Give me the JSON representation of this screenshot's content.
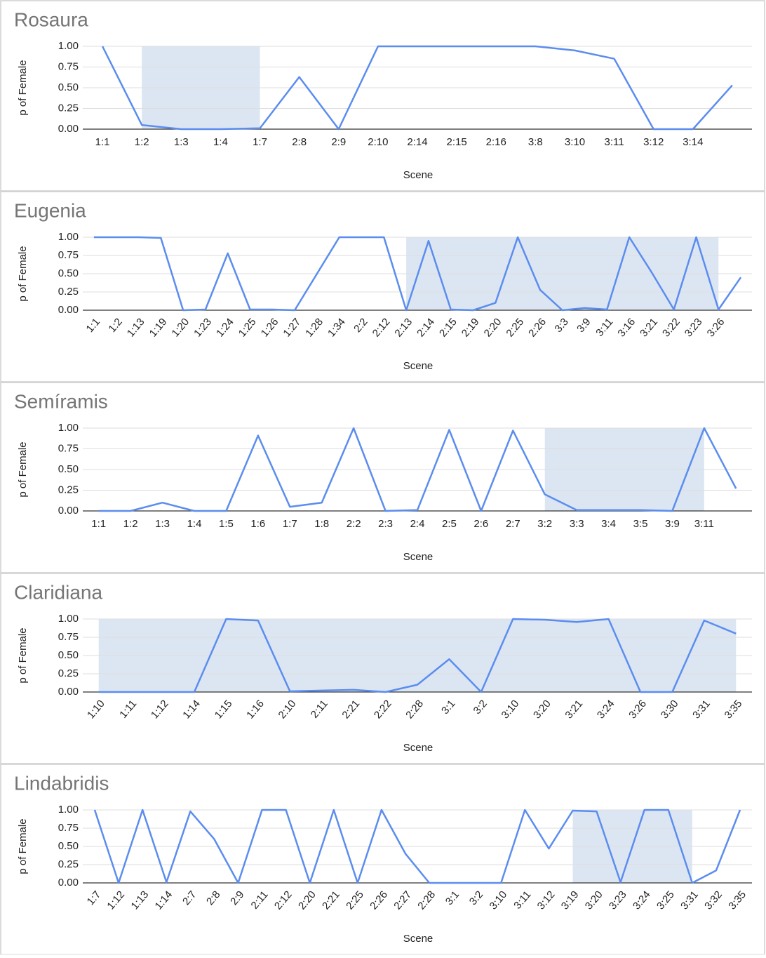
{
  "chart_data": [
    {
      "type": "line",
      "title": "Rosaura",
      "xlabel": "Scene",
      "ylabel": "p of Female",
      "color": "#5b8def",
      "shade_color": "#dce6f3",
      "categories": [
        "1:1",
        "1:2",
        "1:3",
        "1:4",
        "1:7",
        "2:8",
        "2:9",
        "2:10",
        "2:14",
        "2:15",
        "2:16",
        "3:8",
        "3:10",
        "3:11",
        "3:12",
        "3:14",
        null
      ],
      "values": [
        1.0,
        0.05,
        0.0,
        0.0,
        0.01,
        0.63,
        0.0,
        1.0,
        1.0,
        1.0,
        1.0,
        1.0,
        0.95,
        0.85,
        0.0,
        0.0,
        0.53
      ],
      "shade": [
        1,
        4
      ],
      "x_label_rotation": 0,
      "ylim": [
        0,
        1
      ],
      "yticks": [
        {
          "value": 0,
          "label": "0.00"
        },
        0.25,
        {
          "value": 0.5,
          "label": "0.50"
        },
        0.75,
        {
          "value": 1,
          "label": "1.00"
        }
      ],
      "grid": true
    },
    {
      "type": "line",
      "title": "Eugenia",
      "xlabel": "Scene",
      "ylabel": "p of Female",
      "color": "#5b8def",
      "shade_color": "#dce6f3",
      "categories": [
        "1:1",
        "1:2",
        "1:13",
        "1:19",
        "1:20",
        "1:23",
        "1:24",
        "1:25",
        "1:26",
        "1:27",
        "1:28",
        "1:34",
        "2:2",
        "2:12",
        "2:13",
        "2:14",
        "2:15",
        "2:19",
        "2:20",
        "2:25",
        "2:26",
        "3:3",
        "3:9",
        "3:11",
        "3:16",
        "3:21",
        "3:22",
        "3:23",
        "3:26",
        null
      ],
      "values": [
        1.0,
        1.0,
        1.0,
        0.99,
        0.0,
        0.01,
        0.78,
        0.01,
        0.01,
        0.0,
        0.5,
        1.0,
        1.0,
        1.0,
        0.0,
        0.95,
        0.01,
        0.0,
        0.1,
        1.0,
        0.28,
        0.0,
        0.03,
        0.01,
        1.0,
        0.52,
        0.01,
        1.0,
        0.01,
        0.45
      ],
      "shade": [
        14,
        28
      ],
      "x_label_rotation": -50,
      "ylim": [
        0,
        1
      ],
      "yticks": [
        {
          "value": 0,
          "label": "0.00"
        },
        0.25,
        {
          "value": 0.5,
          "label": "0.50"
        },
        0.75,
        {
          "value": 1,
          "label": "1.00"
        }
      ],
      "grid": true
    },
    {
      "type": "line",
      "title": "Semíramis",
      "xlabel": "Scene",
      "ylabel": "p of Female",
      "color": "#5b8def",
      "shade_color": "#dce6f3",
      "categories": [
        "1:1",
        "1:2",
        "1:3",
        "1:4",
        "1:5",
        "1:6",
        "1:7",
        "1:8",
        "2:2",
        "2:3",
        "2:4",
        "2:5",
        "2:6",
        "2:7",
        "3:2",
        "3:3",
        "3:4",
        "3:5",
        "3:9",
        "3:11",
        null
      ],
      "values": [
        0.0,
        0.0,
        0.1,
        0.0,
        0.0,
        0.91,
        0.05,
        0.1,
        1.0,
        0.0,
        0.01,
        0.98,
        0.0,
        0.97,
        0.2,
        0.01,
        0.01,
        0.01,
        0.0,
        1.0,
        0.27
      ],
      "shade": [
        14,
        19
      ],
      "x_label_rotation": 0,
      "ylim": [
        0,
        1
      ],
      "yticks": [
        {
          "value": 0,
          "label": "0.00"
        },
        0.25,
        {
          "value": 0.5,
          "label": "0.50"
        },
        0.75,
        {
          "value": 1,
          "label": "1.00"
        }
      ],
      "grid": true
    },
    {
      "type": "line",
      "title": "Claridiana",
      "xlabel": "Scene",
      "ylabel": "p of Female",
      "color": "#5b8def",
      "shade_color": "#dce6f3",
      "categories": [
        "1:10",
        "1:11",
        "1:12",
        "1:14",
        "1:15",
        "1:16",
        "2:10",
        "2:11",
        "2:21",
        "2:22",
        "2:28",
        "3:1",
        "3:2",
        "3:10",
        "3:20",
        "3:21",
        "3:24",
        "3:26",
        "3:30",
        "3:31",
        "3:35"
      ],
      "values": [
        0.0,
        0.0,
        0.0,
        0.0,
        1.0,
        0.98,
        0.01,
        0.02,
        0.03,
        0.0,
        0.1,
        0.45,
        0.0,
        1.0,
        0.99,
        0.96,
        1.0,
        0.0,
        0.0,
        0.98,
        0.8
      ],
      "shade": [
        0,
        20
      ],
      "x_label_rotation": -50,
      "ylim": [
        0,
        1
      ],
      "yticks": [
        {
          "value": 0,
          "label": "0.00"
        },
        0.25,
        {
          "value": 0.5,
          "label": "0.50"
        },
        0.75,
        {
          "value": 1,
          "label": "1.00"
        }
      ],
      "grid": true
    },
    {
      "type": "line",
      "title": "Lindabridis",
      "xlabel": "Scene",
      "ylabel": "p of Female",
      "color": "#5b8def",
      "shade_color": "#dce6f3",
      "categories": [
        "1:7",
        "1:12",
        "1:13",
        "1:14",
        "2:7",
        "2:8",
        "2:9",
        "2:11",
        "2:12",
        "2:20",
        "2:21",
        "2:25",
        "2:26",
        "2:27",
        "2:28",
        "3:1",
        "3:2",
        "3:10",
        "3:11",
        "3:12",
        "3:19",
        "3:20",
        "3:23",
        "3:24",
        "3:25",
        "3:31",
        "3:32",
        "3:35"
      ],
      "values": [
        1.0,
        0.0,
        1.0,
        0.01,
        0.98,
        0.6,
        0.0,
        1.0,
        1.0,
        0.0,
        1.0,
        0.0,
        1.0,
        0.4,
        0.0,
        0.0,
        0.0,
        0.0,
        1.0,
        0.47,
        0.99,
        0.98,
        0.01,
        1.0,
        1.0,
        0.0,
        0.17,
        1.0
      ],
      "shade": [
        20,
        25
      ],
      "x_label_rotation": -50,
      "ylim": [
        0,
        1
      ],
      "yticks": [
        {
          "value": 0,
          "label": "0.00"
        },
        0.25,
        {
          "value": 0.5,
          "label": "0.50"
        },
        0.75,
        {
          "value": 1,
          "label": "1.00"
        }
      ],
      "grid": true
    }
  ]
}
